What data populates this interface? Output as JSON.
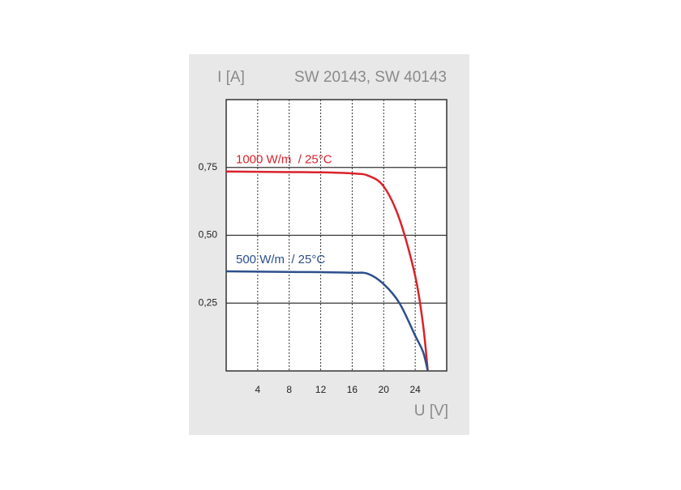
{
  "chart_data": {
    "type": "line",
    "title": "SW 20143, SW 40143",
    "y_label": "I [A]",
    "x_label": "U [V]",
    "x": [
      0,
      4,
      8,
      12,
      16,
      18,
      20,
      22,
      24,
      25,
      25.6
    ],
    "series": [
      {
        "name": "1000 W/m  / 25°C",
        "color": "#d9222a",
        "values": [
          0.735,
          0.734,
          0.733,
          0.732,
          0.728,
          0.72,
          0.68,
          0.56,
          0.35,
          0.17,
          0
        ]
      },
      {
        "name": "500 W/m  / 25°C",
        "color": "#2c4f8c",
        "values": [
          0.367,
          0.366,
          0.365,
          0.364,
          0.362,
          0.358,
          0.32,
          0.25,
          0.13,
          0.07,
          0
        ]
      }
    ],
    "xlim": [
      0,
      28
    ],
    "xticks": [
      4,
      8,
      12,
      16,
      20,
      24
    ],
    "ylim": [
      0,
      1
    ],
    "yticks": [
      {
        "value": 0.25,
        "label": "0,25"
      },
      {
        "value": 0.5,
        "label": "0,50"
      },
      {
        "value": 0.75,
        "label": "0,75"
      }
    ],
    "grid": true
  }
}
